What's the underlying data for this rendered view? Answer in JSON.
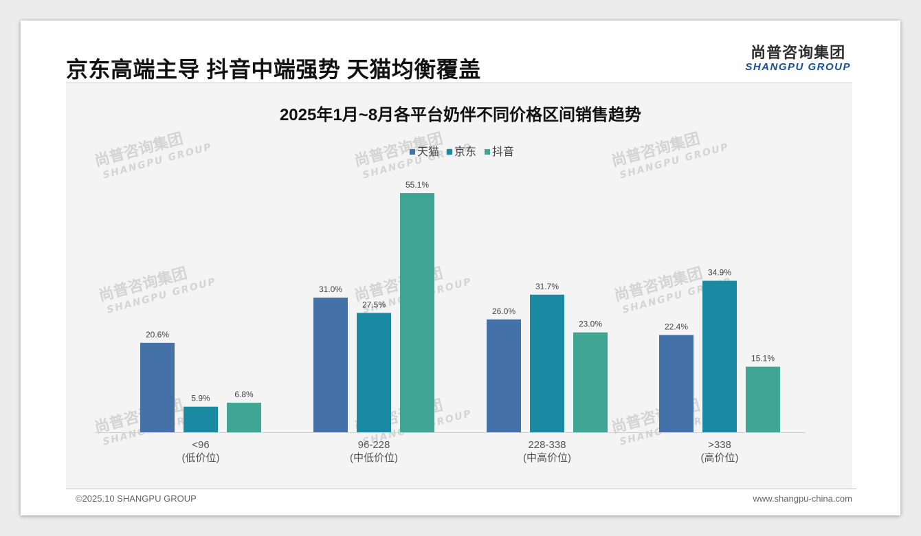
{
  "page": {
    "title": "京东高端主导 抖音中端强势 天猫均衡覆盖",
    "logo_cn": "尚普咨询集团",
    "logo_en": "SHANGPU GROUP",
    "footer_left": "©2025.10 SHANGPU GROUP",
    "footer_right": "www.shangpu-china.com"
  },
  "watermark": {
    "cn": "尚普咨询集团",
    "en": "SHANGPU GROUP"
  },
  "colors": {
    "tmall": "#4472a8",
    "jd": "#1a8aa3",
    "douyin": "#40a693"
  },
  "chart_data": {
    "type": "bar",
    "title": "2025年1月~8月各平台奶伴不同价格区间销售趋势",
    "categories": [
      {
        "range": "<96",
        "tier": "(低价位)"
      },
      {
        "range": "96-228",
        "tier": "(中低价位)"
      },
      {
        "range": "228-338",
        "tier": "(中高价位)"
      },
      {
        "range": ">338",
        "tier": "(高价位)"
      }
    ],
    "series": [
      {
        "name": "天猫",
        "color": "#4472a8",
        "values": [
          20.6,
          31.0,
          26.0,
          22.4
        ],
        "labels": [
          "20.6%",
          "31.0%",
          "26.0%",
          "22.4%"
        ]
      },
      {
        "name": "京东",
        "color": "#1a8aa3",
        "values": [
          5.9,
          27.5,
          31.7,
          34.9
        ],
        "labels": [
          "5.9%",
          "27.5%",
          "31.7%",
          "34.9%"
        ]
      },
      {
        "name": "抖音",
        "color": "#40a693",
        "values": [
          6.8,
          55.1,
          23.0,
          15.1
        ],
        "labels": [
          "6.8%",
          "55.1%",
          "23.0%",
          "15.1%"
        ]
      }
    ],
    "ylim": [
      0,
      55.1
    ],
    "legend": "top-center",
    "grid": false
  }
}
